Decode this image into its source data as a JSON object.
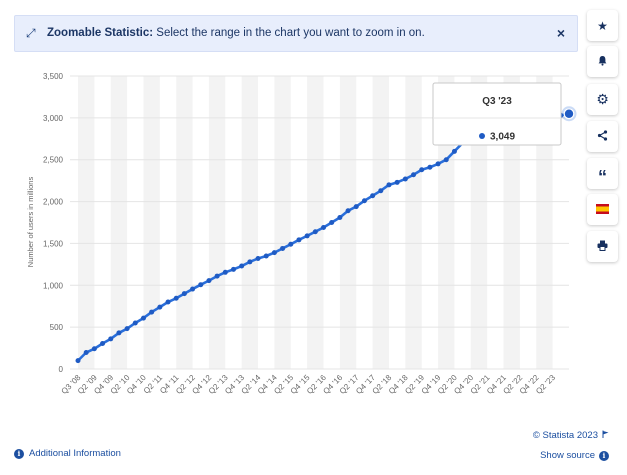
{
  "banner": {
    "title": "Zoomable Statistic:",
    "message": "Select the range in the chart you want to zoom in on.",
    "zoom_icon": "⤢",
    "close_icon": "×"
  },
  "sidebar": {
    "buttons": [
      {
        "name": "star-icon",
        "glyph": "★"
      },
      {
        "name": "bell-icon",
        "glyph": "▲"
      },
      {
        "name": "gear-icon",
        "glyph": "⚙"
      },
      {
        "name": "share-icon",
        "glyph": "⑂"
      },
      {
        "name": "quote-icon",
        "glyph": "“"
      },
      {
        "name": "flag-icon",
        "glyph": ""
      },
      {
        "name": "print-icon",
        "glyph": "⎙"
      }
    ]
  },
  "footer": {
    "additional_info": "Additional Information",
    "copyright": "© Statista 2023",
    "show_source": "Show source"
  },
  "colors": {
    "line": "#2a6fdb",
    "marker": "#1f5bc4",
    "stripe": "#f3f3f3",
    "grid": "#e4e4e4",
    "axis_text": "#666666"
  },
  "tooltip": {
    "label": "Q3 '23",
    "value": "3,049"
  },
  "chart_data": {
    "type": "line",
    "ylabel": "Number of users in millions",
    "ylim": [
      0,
      3500
    ],
    "yticks": [
      0,
      500,
      1000,
      1500,
      2000,
      2500,
      3000,
      3500
    ],
    "ytick_labels": [
      "0",
      "500",
      "1,000",
      "1,500",
      "2,000",
      "2,500",
      "3,000",
      "3,500"
    ],
    "grid": true,
    "xtick_labels": [
      "Q3 '08",
      "Q2 '09",
      "Q4 '09",
      "Q2 '10",
      "Q4 '10",
      "Q2 '11",
      "Q4 '11",
      "Q2 '12",
      "Q4 '12",
      "Q2 '13",
      "Q4 '13",
      "Q2 '14",
      "Q4 '14",
      "Q2 '15",
      "Q4 '15",
      "Q2 '16",
      "Q4 '16",
      "Q2 '17",
      "Q4 '17",
      "Q2 '18",
      "Q4 '18",
      "Q2 '19",
      "Q4 '19",
      "Q2 '20",
      "Q4 '20",
      "Q2 '21",
      "Q4 '21",
      "Q2 '22",
      "Q4 '22",
      "Q2 '23"
    ],
    "series": [
      {
        "x": [
          "Q3 '08",
          "Q4 '08",
          "Q1 '09",
          "Q2 '09",
          "Q3 '09",
          "Q4 '09",
          "Q1 '10",
          "Q2 '10",
          "Q3 '10",
          "Q4 '10",
          "Q1 '11",
          "Q2 '11",
          "Q3 '11",
          "Q4 '11",
          "Q1 '12",
          "Q2 '12",
          "Q3 '12",
          "Q4 '12",
          "Q1 '13",
          "Q2 '13",
          "Q3 '13",
          "Q4 '13",
          "Q1 '14",
          "Q2 '14",
          "Q3 '14",
          "Q4 '14",
          "Q1 '15",
          "Q2 '15",
          "Q3 '15",
          "Q4 '15",
          "Q1 '16",
          "Q2 '16",
          "Q3 '16",
          "Q4 '16",
          "Q1 '17",
          "Q2 '17",
          "Q3 '17",
          "Q4 '17",
          "Q1 '18",
          "Q2 '18",
          "Q3 '18",
          "Q4 '18",
          "Q1 '19",
          "Q2 '19",
          "Q3 '19",
          "Q4 '19",
          "Q1 '20",
          "Q2 '20",
          "Q3 '20",
          "Q4 '20",
          "Q1 '21",
          "Q2 '21",
          "Q3 '21",
          "Q4 '21",
          "Q1 '22",
          "Q2 '22",
          "Q3 '22",
          "Q4 '22",
          "Q1 '23",
          "Q2 '23",
          "Q3 '23"
        ],
        "values": [
          100,
          197,
          242,
          305,
          360,
          431,
          482,
          550,
          608,
          680,
          739,
          800,
          845,
          901,
          955,
          1007,
          1056,
          1110,
          1155,
          1190,
          1230,
          1280,
          1320,
          1350,
          1390,
          1440,
          1490,
          1543,
          1590,
          1640,
          1690,
          1750,
          1810,
          1890,
          1940,
          2010,
          2070,
          2130,
          2200,
          2230,
          2270,
          2320,
          2380,
          2410,
          2450,
          2500,
          2600,
          2700,
          2740,
          2800,
          2850,
          2900,
          2910,
          2912,
          2936,
          2934,
          2958,
          2963,
          2989,
          3030,
          3049
        ]
      }
    ]
  }
}
